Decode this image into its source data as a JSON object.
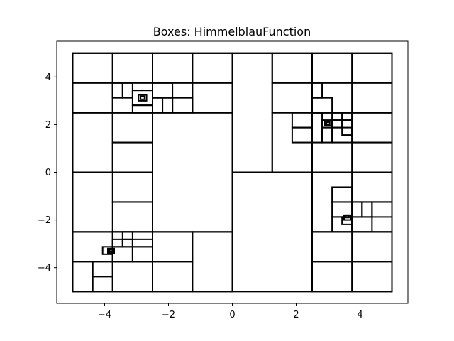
{
  "chart_data": {
    "type": "boxes",
    "title": "Boxes: HimmelblauFunction",
    "xlabel": "",
    "ylabel": "",
    "xlim": [
      -5.5,
      5.5
    ],
    "ylim": [
      -5.5,
      5.5
    ],
    "x_ticks": [
      -4,
      -2,
      0,
      2,
      4
    ],
    "y_ticks": [
      -4,
      -2,
      0,
      2,
      4
    ],
    "x_tick_labels": [
      "−4",
      "−2",
      "0",
      "2",
      "4"
    ],
    "y_tick_labels": [
      "−4",
      "−2",
      "0",
      "2",
      "4"
    ],
    "grid": false,
    "boxes": [
      [
        -5,
        -5,
        10,
        10
      ],
      [
        -5,
        2.5,
        2.5,
        2.5
      ],
      [
        -5,
        0,
        2.5,
        2.5
      ],
      [
        -5,
        -2.5,
        2.5,
        2.5
      ],
      [
        -5,
        -5,
        2.5,
        2.5
      ],
      [
        -2.5,
        -2.5,
        2.5,
        5
      ],
      [
        0,
        -5,
        2.5,
        10
      ],
      [
        2.5,
        -2.5,
        2.5,
        5
      ],
      [
        -2.5,
        2.5,
        2.5,
        2.5
      ],
      [
        2.5,
        2.5,
        2.5,
        2.5
      ],
      [
        2.5,
        -5,
        2.5,
        2.5
      ],
      [
        -2.5,
        -5,
        2.5,
        2.5
      ],
      [
        -5,
        3.75,
        1.25,
        1.25
      ],
      [
        -3.75,
        3.75,
        1.25,
        1.25
      ],
      [
        -2.5,
        3.75,
        1.25,
        1.25
      ],
      [
        -1.25,
        3.75,
        1.25,
        1.25
      ],
      [
        -5,
        2.5,
        1.25,
        1.25
      ],
      [
        -3.75,
        2.5,
        1.25,
        1.25
      ],
      [
        -2.5,
        2.5,
        1.25,
        1.25
      ],
      [
        -1.25,
        2.5,
        1.25,
        1.25
      ],
      [
        0,
        0,
        1.25,
        5
      ],
      [
        1.25,
        3.75,
        1.25,
        1.25
      ],
      [
        1.25,
        2.5,
        1.25,
        1.25
      ],
      [
        1.25,
        0,
        1.25,
        2.5
      ],
      [
        2.5,
        3.75,
        1.25,
        1.25
      ],
      [
        3.75,
        3.75,
        1.25,
        1.25
      ],
      [
        2.5,
        2.5,
        1.25,
        1.25
      ],
      [
        3.75,
        2.5,
        1.25,
        1.25
      ],
      [
        -5,
        0,
        1.25,
        2.5
      ],
      [
        -3.75,
        1.25,
        1.25,
        1.25
      ],
      [
        -3.75,
        0,
        1.25,
        1.25
      ],
      [
        -3.75,
        -1.25,
        1.25,
        1.25
      ],
      [
        -3.75,
        -2.5,
        1.25,
        1.25
      ],
      [
        2.5,
        0,
        1.25,
        2.5
      ],
      [
        3.75,
        1.25,
        1.25,
        1.25
      ],
      [
        3.75,
        0,
        1.25,
        1.25
      ],
      [
        2.5,
        -2.5,
        1.25,
        2.5
      ],
      [
        3.75,
        -1.25,
        1.25,
        1.25
      ],
      [
        3.75,
        -2.5,
        1.25,
        1.25
      ],
      [
        -5,
        -3.75,
        1.25,
        1.25
      ],
      [
        -3.75,
        -3.75,
        1.25,
        1.25
      ],
      [
        -2.5,
        -3.75,
        1.25,
        1.25
      ],
      [
        -1.25,
        -5,
        1.25,
        2.5
      ],
      [
        -5,
        -5,
        0.625,
        1.25
      ],
      [
        -4.375,
        -5,
        0.625,
        0.625
      ],
      [
        -4.375,
        -4.375,
        0.625,
        0.625
      ],
      [
        -3.75,
        -5,
        1.25,
        1.25
      ],
      [
        -2.5,
        -5,
        1.25,
        1.25
      ],
      [
        2.5,
        -3.75,
        1.25,
        1.25
      ],
      [
        3.75,
        -3.75,
        1.25,
        1.25
      ],
      [
        2.5,
        -5,
        1.25,
        1.25
      ],
      [
        3.75,
        -5,
        1.25,
        1.25
      ],
      [
        -3.75,
        3.125,
        0.3125,
        0.625
      ],
      [
        -3.4375,
        3.125,
        0.3125,
        0.625
      ],
      [
        -3.125,
        2.8125,
        0.625,
        0.625
      ],
      [
        -3.125,
        2.5,
        0.625,
        0.3125
      ],
      [
        -2.5,
        2.5,
        0.3125,
        0.625
      ],
      [
        -2.1875,
        2.5,
        0.3125,
        0.625
      ],
      [
        -2.5,
        3.125,
        0.625,
        0.625
      ],
      [
        -1.875,
        2.5,
        0.625,
        0.625
      ],
      [
        -2.9375,
        3.0,
        0.25,
        0.25
      ],
      [
        -2.875,
        3.0625,
        0.125,
        0.125
      ],
      [
        1.875,
        1.875,
        0.625,
        0.625
      ],
      [
        1.875,
        1.25,
        0.625,
        0.625
      ],
      [
        2.5,
        1.25,
        0.3125,
        1.25
      ],
      [
        2.5,
        2.5,
        0.625,
        0.625
      ],
      [
        2.5,
        3.125,
        0.3125,
        0.625
      ],
      [
        2.8125,
        1.25,
        0.3125,
        0.625
      ],
      [
        2.8125,
        1.875,
        0.3125,
        0.3125
      ],
      [
        3.125,
        1.875,
        0.3125,
        0.3125
      ],
      [
        3.125,
        2.1875,
        0.3125,
        0.3125
      ],
      [
        3.4375,
        2.1875,
        0.3125,
        0.3125
      ],
      [
        3.4375,
        1.5625,
        0.3125,
        0.625
      ],
      [
        3.125,
        1.25,
        0.625,
        0.625
      ],
      [
        2.9,
        1.95,
        0.2,
        0.2
      ],
      [
        2.95,
        2.0,
        0.1,
        0.1
      ],
      [
        -3.75,
        -3.75,
        0.625,
        0.625
      ],
      [
        -3.125,
        -3.75,
        0.625,
        0.625
      ],
      [
        -3.75,
        -3.125,
        0.3125,
        0.3125
      ],
      [
        -3.4375,
        -3.125,
        0.3125,
        0.3125
      ],
      [
        -3.4375,
        -2.8125,
        0.3125,
        0.3125
      ],
      [
        -3.125,
        -3.125,
        0.625,
        0.3125
      ],
      [
        -4.0625,
        -3.4375,
        0.3125,
        0.3125
      ],
      [
        -3.9,
        -3.4,
        0.2,
        0.2
      ],
      [
        -3.85,
        -3.35,
        0.1,
        0.1
      ],
      [
        3.125,
        -1.25,
        0.625,
        0.625
      ],
      [
        3.125,
        -1.875,
        0.625,
        0.625
      ],
      [
        3.125,
        -2.5,
        0.625,
        0.625
      ],
      [
        3.75,
        -1.875,
        0.3125,
        0.625
      ],
      [
        4.0625,
        -1.875,
        0.3125,
        0.625
      ],
      [
        4.375,
        -1.875,
        0.625,
        0.625
      ],
      [
        3.75,
        -2.5,
        0.625,
        0.625
      ],
      [
        3.4375,
        -2.1875,
        0.3125,
        0.3125
      ],
      [
        3.5,
        -2.0,
        0.2,
        0.2
      ],
      [
        3.55,
        -1.9,
        0.1,
        0.1
      ]
    ]
  }
}
